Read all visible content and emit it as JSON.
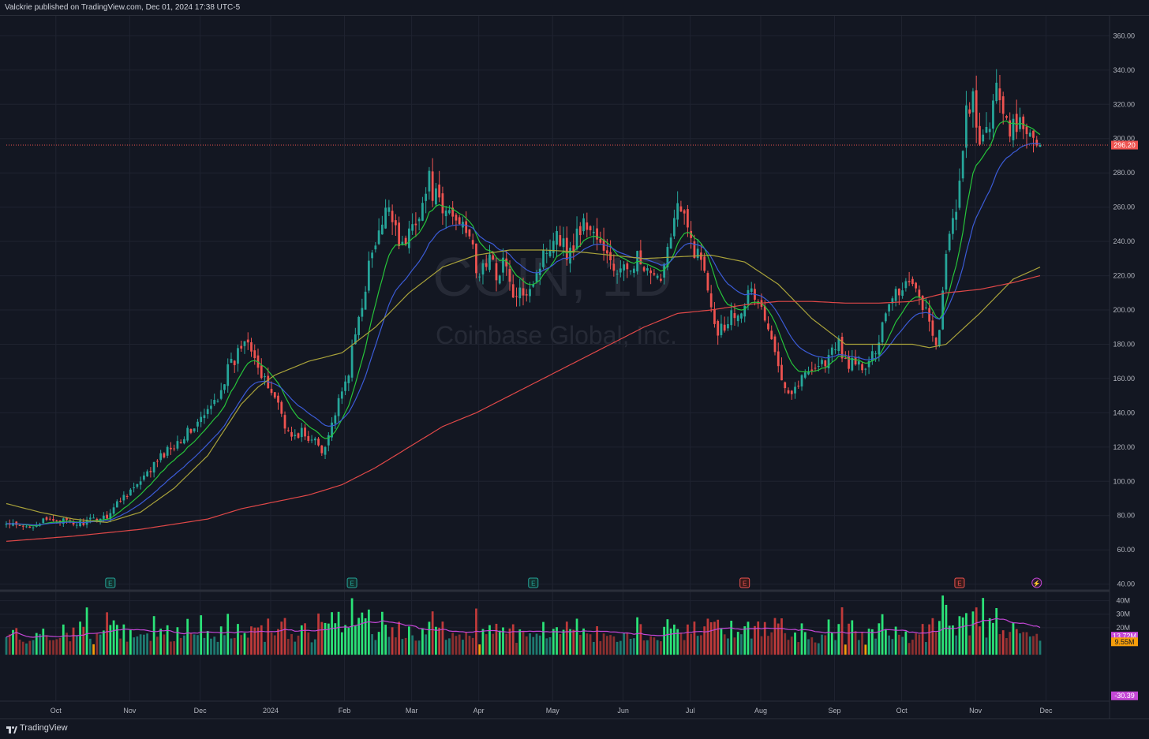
{
  "header": {
    "attribution": "Valckrie published on TradingView.com, Dec 01, 2024 17:38 UTC-5"
  },
  "footer": {
    "brand": "TradingView"
  },
  "watermark": {
    "ticker": "COIN, 1D",
    "company": "Coinbase Global, Inc."
  },
  "colors": {
    "bg": "#131722",
    "grid": "#1f2330",
    "up": "#26a69a",
    "down": "#ef5350",
    "ema_fast": "#26c43a",
    "ema_mid": "#3b5bd6",
    "sma_50": "#a9a23a",
    "sma_200": "#e04848",
    "vol_up": "#1e7a70",
    "vol_down": "#8a2f2f",
    "vol_high_up": "#2be378",
    "vol_high_down": "#c03a3a",
    "vol_low": "#f59e0b",
    "vol_ma": "#c447d6",
    "price_line": "#ef5350"
  },
  "chart_data": [
    {
      "type": "candlestick",
      "name": "price-pane",
      "ylim": [
        38,
        368
      ],
      "yticks": [
        "40.00",
        "60.00",
        "80.00",
        "100.00",
        "120.00",
        "140.00",
        "160.00",
        "180.00",
        "200.00",
        "220.00",
        "240.00",
        "260.00",
        "280.00",
        "300.00",
        "320.00",
        "340.00",
        "360.00"
      ],
      "ytick_values": [
        40,
        60,
        80,
        100,
        120,
        140,
        160,
        180,
        200,
        220,
        240,
        260,
        280,
        300,
        320,
        340,
        360
      ],
      "x_tick_labels": [
        "Oct",
        "Nov",
        "Dec",
        "2024",
        "Feb",
        "Mar",
        "Apr",
        "May",
        "Jun",
        "Jul",
        "Aug",
        "Sep",
        "Oct",
        "Nov",
        "Dec"
      ],
      "last_price": {
        "value": 296.2,
        "label": "296.20"
      },
      "price_path": [
        [
          0,
          75
        ],
        [
          5,
          73
        ],
        [
          10,
          76
        ],
        [
          15,
          78
        ],
        [
          20,
          75
        ],
        [
          25,
          77
        ],
        [
          30,
          80
        ],
        [
          35,
          92
        ],
        [
          40,
          99
        ],
        [
          45,
          112
        ],
        [
          50,
          122
        ],
        [
          55,
          130
        ],
        [
          60,
          140
        ],
        [
          63,
          150
        ],
        [
          66,
          165
        ],
        [
          68,
          170
        ],
        [
          70,
          180
        ],
        [
          72,
          185
        ],
        [
          74,
          175
        ],
        [
          76,
          160
        ],
        [
          78,
          155
        ],
        [
          80,
          150
        ],
        [
          82,
          140
        ],
        [
          84,
          128
        ],
        [
          86,
          125
        ],
        [
          88,
          130
        ],
        [
          90,
          122
        ],
        [
          92,
          125
        ],
        [
          94,
          118
        ],
        [
          96,
          128
        ],
        [
          98,
          140
        ],
        [
          100,
          150
        ],
        [
          102,
          165
        ],
        [
          104,
          185
        ],
        [
          106,
          205
        ],
        [
          108,
          225
        ],
        [
          110,
          238
        ],
        [
          112,
          248
        ],
        [
          114,
          262
        ],
        [
          116,
          250
        ],
        [
          118,
          235
        ],
        [
          120,
          245
        ],
        [
          122,
          255
        ],
        [
          124,
          262
        ],
        [
          126,
          275
        ],
        [
          128,
          265
        ],
        [
          130,
          255
        ],
        [
          132,
          258
        ],
        [
          134,
          252
        ],
        [
          136,
          255
        ],
        [
          138,
          245
        ],
        [
          140,
          220
        ],
        [
          142,
          225
        ],
        [
          144,
          230
        ],
        [
          146,
          220
        ],
        [
          148,
          230
        ],
        [
          150,
          215
        ],
        [
          152,
          205
        ],
        [
          154,
          212
        ],
        [
          156,
          215
        ],
        [
          158,
          222
        ],
        [
          160,
          232
        ],
        [
          162,
          240
        ],
        [
          164,
          248
        ],
        [
          166,
          238
        ],
        [
          168,
          232
        ],
        [
          170,
          245
        ],
        [
          172,
          250
        ],
        [
          174,
          248
        ],
        [
          176,
          242
        ],
        [
          178,
          232
        ],
        [
          180,
          230
        ],
        [
          182,
          220
        ],
        [
          184,
          222
        ],
        [
          186,
          228
        ],
        [
          188,
          230
        ],
        [
          190,
          222
        ],
        [
          192,
          218
        ],
        [
          194,
          216
        ],
        [
          196,
          228
        ],
        [
          198,
          248
        ],
        [
          200,
          260
        ],
        [
          202,
          252
        ],
        [
          204,
          240
        ],
        [
          206,
          232
        ],
        [
          208,
          225
        ],
        [
          210,
          205
        ],
        [
          212,
          188
        ],
        [
          214,
          192
        ],
        [
          216,
          198
        ],
        [
          218,
          200
        ],
        [
          220,
          206
        ],
        [
          222,
          210
        ],
        [
          224,
          205
        ],
        [
          226,
          195
        ],
        [
          228,
          180
        ],
        [
          230,
          168
        ],
        [
          232,
          158
        ],
        [
          234,
          152
        ],
        [
          236,
          158
        ],
        [
          238,
          162
        ],
        [
          240,
          168
        ],
        [
          242,
          168
        ],
        [
          244,
          170
        ],
        [
          246,
          175
        ],
        [
          248,
          180
        ],
        [
          250,
          170
        ],
        [
          252,
          168
        ],
        [
          254,
          168
        ],
        [
          256,
          165
        ],
        [
          258,
          172
        ],
        [
          260,
          185
        ],
        [
          262,
          200
        ],
        [
          264,
          210
        ],
        [
          266,
          212
        ],
        [
          268,
          216
        ],
        [
          270,
          218
        ],
        [
          272,
          208
        ],
        [
          274,
          200
        ],
        [
          276,
          182
        ],
        [
          278,
          185
        ],
        [
          280,
          230
        ],
        [
          282,
          255
        ],
        [
          284,
          270
        ],
        [
          286,
          312
        ],
        [
          288,
          325
        ],
        [
          290,
          290
        ],
        [
          292,
          305
        ],
        [
          294,
          320
        ],
        [
          296,
          330
        ],
        [
          298,
          310
        ],
        [
          300,
          305
        ],
        [
          302,
          310
        ],
        [
          304,
          300
        ],
        [
          306,
          305
        ],
        [
          308,
          296.2
        ]
      ],
      "indicators": [
        {
          "name": "ema_fast",
          "color": "#26c43a",
          "period": 10
        },
        {
          "name": "ema_mid",
          "color": "#3b5bd6",
          "period": 21
        },
        {
          "name": "sma_50",
          "color": "#a9a23a",
          "points": [
            [
              0,
              87
            ],
            [
              10,
              82
            ],
            [
              20,
              78
            ],
            [
              30,
              76
            ],
            [
              40,
              82
            ],
            [
              50,
              96
            ],
            [
              60,
              115
            ],
            [
              65,
              130
            ],
            [
              70,
              145
            ],
            [
              75,
              155
            ],
            [
              80,
              162
            ],
            [
              90,
              170
            ],
            [
              100,
              175
            ],
            [
              110,
              190
            ],
            [
              120,
              210
            ],
            [
              130,
              225
            ],
            [
              140,
              232
            ],
            [
              150,
              235
            ],
            [
              160,
              235
            ],
            [
              170,
              234
            ],
            [
              180,
              232
            ],
            [
              190,
              230
            ],
            [
              200,
              231
            ],
            [
              210,
              232
            ],
            [
              220,
              228
            ],
            [
              230,
              215
            ],
            [
              240,
              195
            ],
            [
              250,
              180
            ],
            [
              260,
              180
            ],
            [
              270,
              180
            ],
            [
              275,
              178
            ],
            [
              280,
              180
            ],
            [
              290,
              198
            ],
            [
              300,
              218
            ],
            [
              308,
              225
            ]
          ]
        },
        {
          "name": "sma_200",
          "color": "#e04848",
          "points": [
            [
              0,
              65
            ],
            [
              20,
              68
            ],
            [
              40,
              72
            ],
            [
              60,
              78
            ],
            [
              70,
              84
            ],
            [
              80,
              88
            ],
            [
              90,
              92
            ],
            [
              100,
              98
            ],
            [
              110,
              108
            ],
            [
              120,
              120
            ],
            [
              130,
              132
            ],
            [
              140,
              140
            ],
            [
              150,
              150
            ],
            [
              160,
              160
            ],
            [
              170,
              170
            ],
            [
              180,
              180
            ],
            [
              190,
              190
            ],
            [
              200,
              198
            ],
            [
              210,
              200
            ],
            [
              220,
              203
            ],
            [
              230,
              205
            ],
            [
              240,
              205
            ],
            [
              250,
              204
            ],
            [
              260,
              204
            ],
            [
              270,
              205
            ],
            [
              280,
              210
            ],
            [
              290,
              212
            ],
            [
              300,
              216
            ],
            [
              308,
              220
            ]
          ]
        }
      ],
      "event_markers": [
        {
          "bar": 31,
          "glyph": "E",
          "kind": "earnings-past"
        },
        {
          "bar": 103,
          "glyph": "E",
          "kind": "earnings-past"
        },
        {
          "bar": 157,
          "glyph": "E",
          "kind": "earnings-past"
        },
        {
          "bar": 220,
          "glyph": "E",
          "kind": "earnings-recent"
        },
        {
          "bar": 284,
          "glyph": "E",
          "kind": "earnings-recent"
        },
        {
          "bar": 307,
          "glyph": "⚡",
          "kind": "news"
        }
      ]
    },
    {
      "type": "bar",
      "name": "volume-pane",
      "ylim": [
        -32,
        45
      ],
      "yticks": [
        "40M",
        "30M",
        "20M"
      ],
      "ytick_values": [
        40,
        30,
        20
      ],
      "badges": [
        {
          "label": "13.72M",
          "value": 13.72,
          "color": "#c447d6"
        },
        {
          "label": "9.55M",
          "value": 9.55,
          "color": "#f59e0b"
        },
        {
          "label": "-30.39",
          "value": -30.39,
          "color": "#c447d6"
        }
      ]
    }
  ]
}
